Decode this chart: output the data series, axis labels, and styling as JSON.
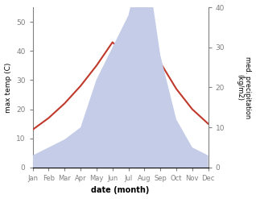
{
  "months": [
    "Jan",
    "Feb",
    "Mar",
    "Apr",
    "May",
    "Jun",
    "Jul",
    "Aug",
    "Sep",
    "Oct",
    "Nov",
    "Dec"
  ],
  "temperature": [
    13,
    17,
    22,
    28,
    35,
    43,
    38,
    44,
    36,
    27,
    20,
    15
  ],
  "precipitation": [
    3,
    5,
    7,
    10,
    22,
    30,
    38,
    55,
    28,
    12,
    5,
    3
  ],
  "temp_color": "#c0392b",
  "precip_fill_color": "#c5cce8",
  "temp_ylim": [
    0,
    55
  ],
  "precip_ylim": [
    0,
    40
  ],
  "temp_yticks": [
    0,
    10,
    20,
    30,
    40,
    50
  ],
  "precip_yticks": [
    0,
    10,
    20,
    30,
    40
  ],
  "xlabel": "date (month)",
  "ylabel_left": "max temp (C)",
  "ylabel_right": "med. precipitation\n(kg/m2)",
  "background_color": "#ffffff",
  "line_width": 1.5
}
